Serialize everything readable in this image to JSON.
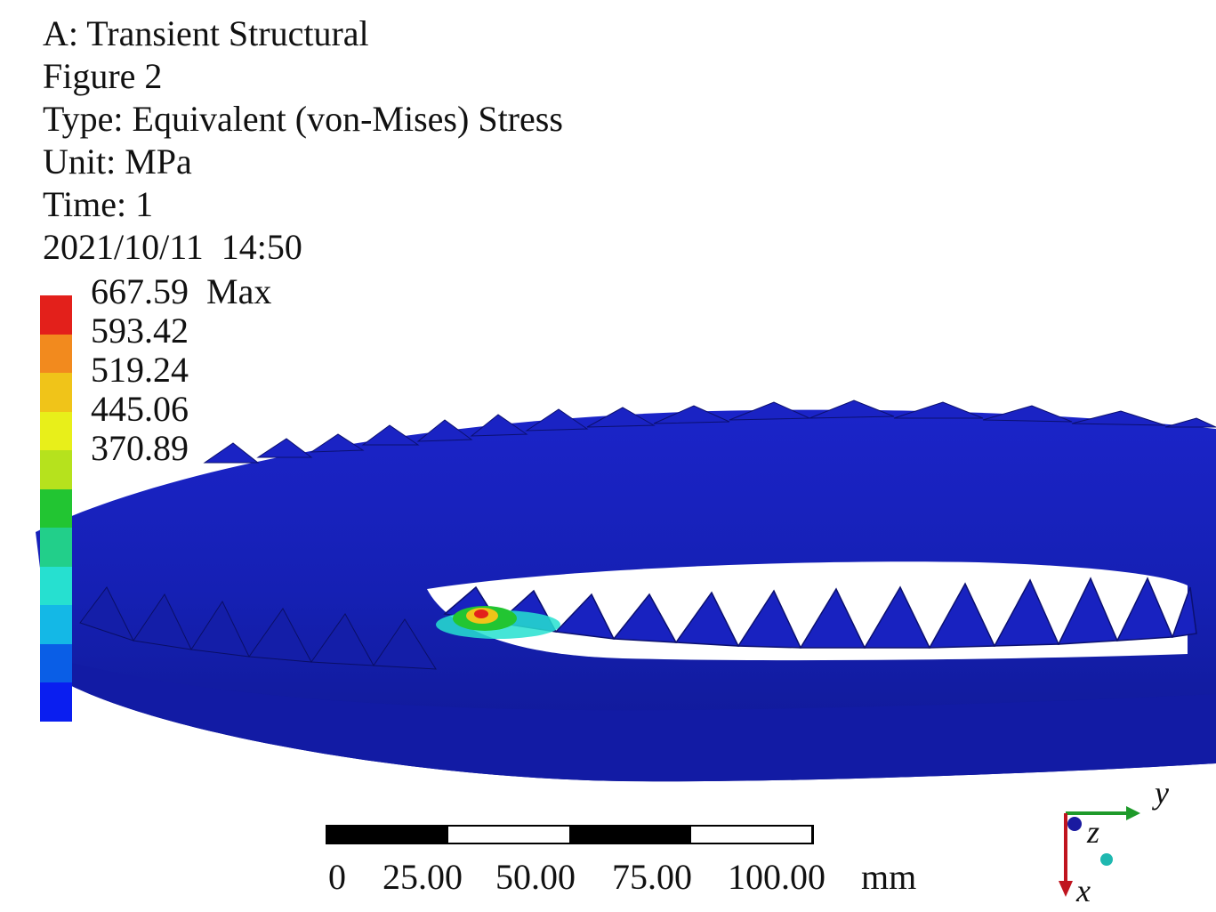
{
  "header": {
    "analysis": "A: Transient Structural",
    "figure": "Figure 2",
    "type": "Type: Equivalent (von-Mises) Stress",
    "unit": "Unit: MPa",
    "time": "Time: 1",
    "datetime": "2021/10/11  14:50"
  },
  "legend": {
    "labels": [
      "667.59  Max",
      "593.42",
      "519.24",
      "445.06",
      "370.89"
    ],
    "colors": [
      "#e3201b",
      "#f28a1e",
      "#f0c419",
      "#e8ef1a",
      "#b6e21d",
      "#22c532",
      "#22cf8a",
      "#26e0d0",
      "#14b8e6",
      "#0a5ee6",
      "#0a1ef0"
    ]
  },
  "model": {
    "part_color": "#1a1fb8",
    "hotspot_colors": [
      "#e3201b",
      "#f0c419",
      "#22c532",
      "#26e0d0"
    ]
  },
  "scale": {
    "labels": [
      "0",
      "25.00",
      "50.00",
      "75.00",
      "100.00",
      "mm"
    ]
  },
  "triad": {
    "y_label": "y",
    "z_label": "z",
    "x_label": "x",
    "y_color": "#1e9a2a",
    "x_color": "#c0141f",
    "z_color": "#1a1aa0",
    "iso_color": "#1fb8b0"
  }
}
